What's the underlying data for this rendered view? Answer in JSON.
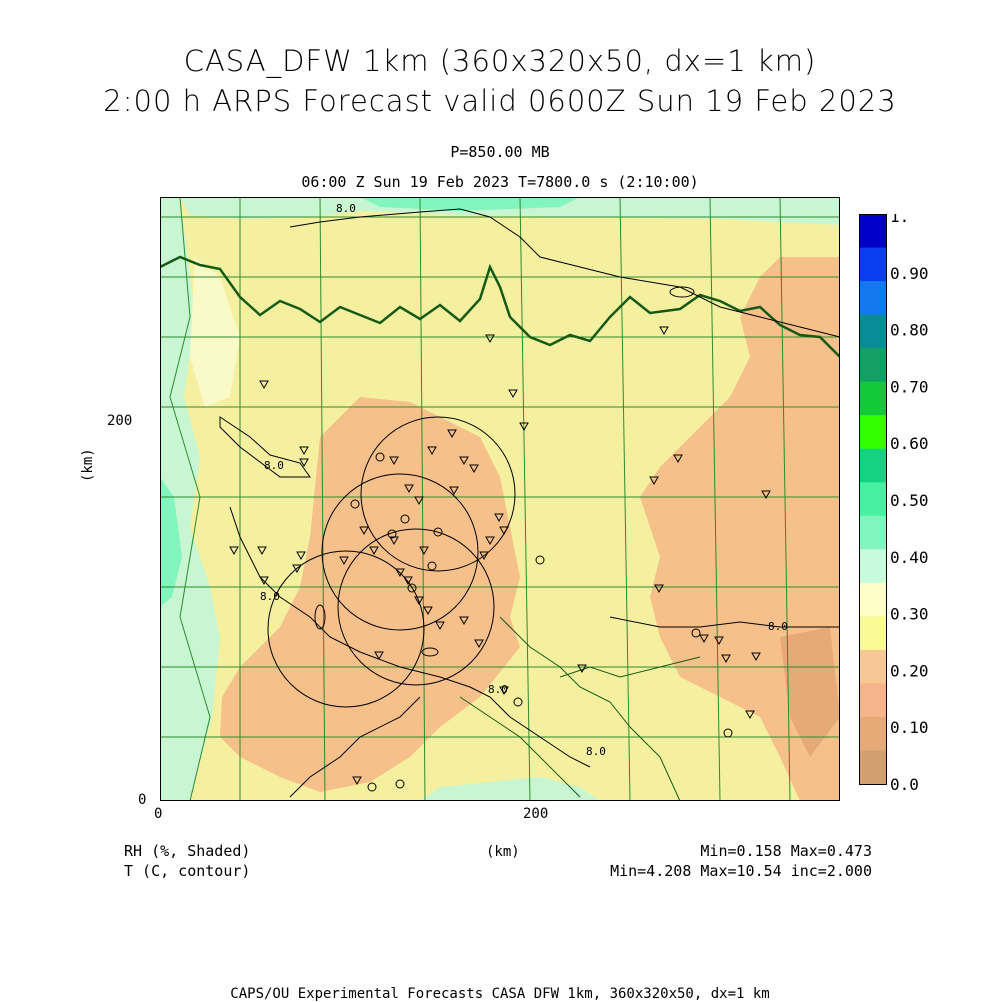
{
  "title": {
    "line1": "CASA_DFW 1km (360x320x50, dx=1 km)",
    "line2": "2:00 h ARPS Forecast valid 0600Z Sun 19 Feb 2023"
  },
  "level": "P=850.00 MB",
  "time": "06:00 Z Sun 19 Feb 2023   T=7800.0 s (2:10:00)",
  "axes": {
    "y_label": "(km)",
    "x_label": "(km)",
    "x_ticks": [
      "0",
      "200"
    ],
    "y_ticks": [
      "0",
      "200"
    ]
  },
  "contour_labels": [
    "8.0",
    "8.0",
    "8.0",
    "8.0",
    "8.0",
    "8.0"
  ],
  "legend_left": {
    "line1": "RH (%, Shaded)",
    "line2": "T (C, contour)"
  },
  "stats": {
    "rh": "Min=0.158  Max=0.473",
    "t": "Min=4.208  Max=10.54  inc=2.000"
  },
  "colorbar": {
    "labels": [
      "1.",
      "0.90",
      "0.80",
      "0.70",
      "0.60",
      "0.50",
      "0.40",
      "0.30",
      "0.20",
      "0.10",
      "0.0"
    ],
    "colors": [
      "#0000c8",
      "#0a3cf0",
      "#1478f0",
      "#0a8c96",
      "#14a064",
      "#14c83c",
      "#32ff00",
      "#14d282",
      "#46f0a0",
      "#82f5be",
      "#c8fadc",
      "#ffffc8",
      "#fafa96",
      "#f5c896",
      "#f5b48c",
      "#e6aa78",
      "#d2a06e"
    ]
  },
  "colors": {
    "dry": "#f5c08a",
    "mid": "#f5f0a0",
    "moist": "#c8f5d2",
    "wet": "#78f0b4",
    "county": "#2e8b2e",
    "state": "#145a14"
  },
  "footer": "CAPS/OU Experimental Forecasts  CASA DFW 1km, 360x320x50, dx=1 km"
}
